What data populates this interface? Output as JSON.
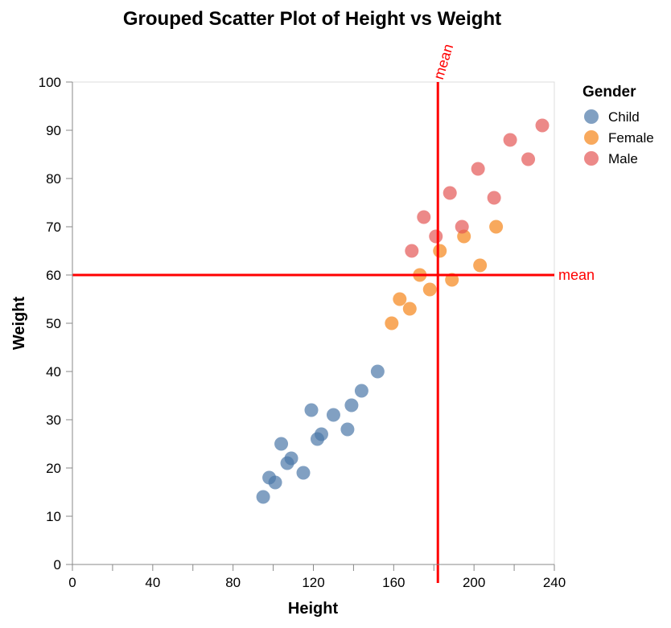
{
  "chart_data": {
    "type": "scatter",
    "title": "Grouped Scatter Plot of Height vs Weight",
    "xlabel": "Height",
    "ylabel": "Weight",
    "xlim": [
      0,
      240
    ],
    "ylim": [
      0,
      100
    ],
    "x_ticks": [
      0,
      20,
      40,
      60,
      80,
      100,
      120,
      140,
      160,
      180,
      200,
      220,
      240
    ],
    "x_tick_labels": [
      "0",
      "",
      "40",
      "",
      "80",
      "",
      "120",
      "",
      "160",
      "",
      "200",
      "",
      "240"
    ],
    "y_ticks": [
      0,
      10,
      20,
      30,
      40,
      50,
      60,
      70,
      80,
      90,
      100
    ],
    "y_tick_labels": [
      "0",
      "10",
      "20",
      "30",
      "40",
      "50",
      "60",
      "70",
      "80",
      "90",
      "100"
    ],
    "grid": false,
    "legend": {
      "title": "Gender",
      "placement": "right",
      "entries": [
        "Child",
        "Female",
        "Male"
      ]
    },
    "series": [
      {
        "name": "Child",
        "color": "#4c78a8",
        "points": [
          {
            "x": 95,
            "y": 14
          },
          {
            "x": 98,
            "y": 18
          },
          {
            "x": 101,
            "y": 17
          },
          {
            "x": 104,
            "y": 25
          },
          {
            "x": 107,
            "y": 21
          },
          {
            "x": 109,
            "y": 22
          },
          {
            "x": 115,
            "y": 19
          },
          {
            "x": 119,
            "y": 32
          },
          {
            "x": 122,
            "y": 26
          },
          {
            "x": 124,
            "y": 27
          },
          {
            "x": 130,
            "y": 31
          },
          {
            "x": 137,
            "y": 28
          },
          {
            "x": 139,
            "y": 33
          },
          {
            "x": 144,
            "y": 36
          },
          {
            "x": 152,
            "y": 40
          }
        ]
      },
      {
        "name": "Female",
        "color": "#f58518",
        "points": [
          {
            "x": 159,
            "y": 50
          },
          {
            "x": 163,
            "y": 55
          },
          {
            "x": 168,
            "y": 53
          },
          {
            "x": 173,
            "y": 60
          },
          {
            "x": 178,
            "y": 57
          },
          {
            "x": 183,
            "y": 65
          },
          {
            "x": 189,
            "y": 59
          },
          {
            "x": 195,
            "y": 68
          },
          {
            "x": 203,
            "y": 62
          },
          {
            "x": 211,
            "y": 70
          }
        ]
      },
      {
        "name": "Male",
        "color": "#e45756",
        "points": [
          {
            "x": 169,
            "y": 65
          },
          {
            "x": 175,
            "y": 72
          },
          {
            "x": 181,
            "y": 68
          },
          {
            "x": 188,
            "y": 77
          },
          {
            "x": 194,
            "y": 70
          },
          {
            "x": 202,
            "y": 82
          },
          {
            "x": 210,
            "y": 76
          },
          {
            "x": 218,
            "y": 88
          },
          {
            "x": 227,
            "y": 84
          },
          {
            "x": 234,
            "y": 91
          }
        ]
      }
    ],
    "reference_lines": [
      {
        "orientation": "vertical",
        "value": 182,
        "label": "mean",
        "color": "#ff0000"
      },
      {
        "orientation": "horizontal",
        "value": 60,
        "label": "mean",
        "color": "#ff0000"
      }
    ]
  }
}
